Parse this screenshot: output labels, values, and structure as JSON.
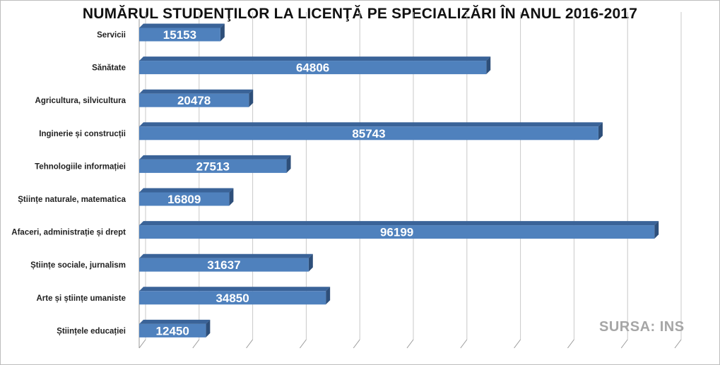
{
  "chart_data": {
    "type": "bar",
    "orientation": "horizontal",
    "title": "NUMĂRUL STUDENŢILOR LA LICENŢĂ PE SPECIALIZĂRI ÎN ANUL 2016-2017",
    "categories": [
      "Servicii",
      "Sănătate",
      "Agricultura, silvicultura",
      "Inginerie și construcții",
      "Tehnologiile informației",
      "Științe naturale, matematica",
      "Afaceri, administrație și drept",
      "Științe sociale, jurnalism",
      "Arte și științe umaniste",
      "Științele educației"
    ],
    "values": [
      15153,
      64806,
      20478,
      85743,
      27513,
      16809,
      96199,
      31637,
      34850,
      12450
    ],
    "xlim": [
      0,
      100000
    ],
    "grid": true,
    "bar_color": "#4F81BD",
    "bar_shadow_color": "#2E4F7A",
    "value_label_color": "#FFFFFF",
    "source_note": "SURSA: INS"
  }
}
